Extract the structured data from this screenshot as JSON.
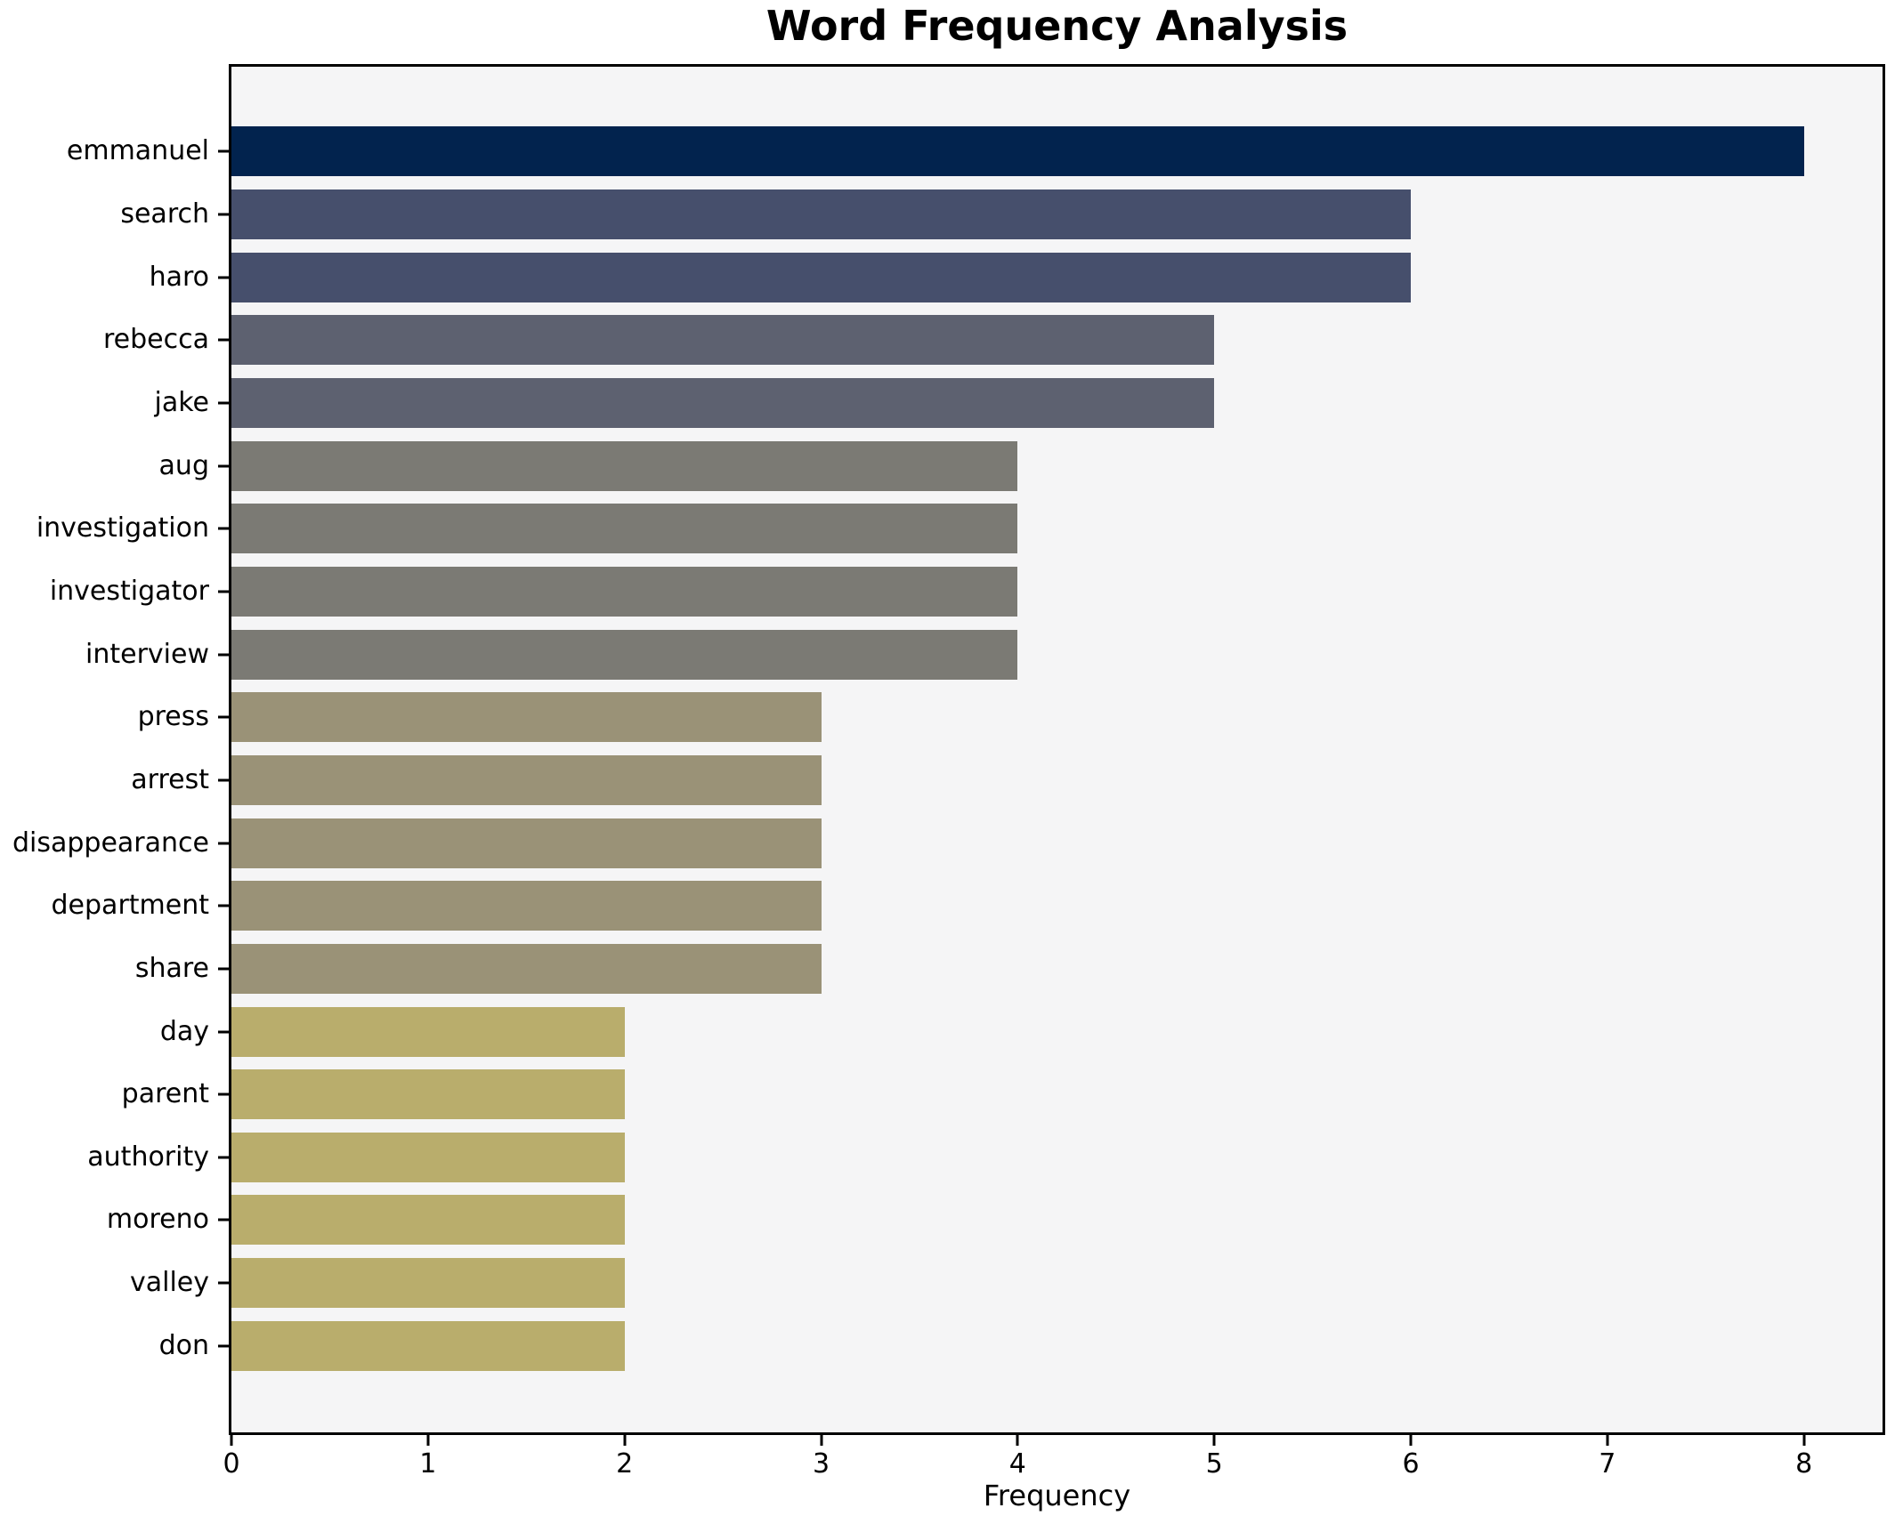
{
  "chart_data": {
    "type": "bar",
    "orientation": "horizontal",
    "title": "Word Frequency Analysis",
    "xlabel": "Frequency",
    "ylabel": "",
    "categories": [
      "emmanuel",
      "search",
      "haro",
      "rebecca",
      "jake",
      "aug",
      "investigation",
      "investigator",
      "interview",
      "press",
      "arrest",
      "disappearance",
      "department",
      "share",
      "day",
      "parent",
      "authority",
      "moreno",
      "valley",
      "don"
    ],
    "values": [
      8,
      6,
      6,
      5,
      5,
      4,
      4,
      4,
      4,
      3,
      3,
      3,
      3,
      3,
      2,
      2,
      2,
      2,
      2,
      2
    ],
    "bar_colors": [
      "#02234e",
      "#464f6c",
      "#464f6c",
      "#5d6170",
      "#5d6170",
      "#7b7a74",
      "#7b7a74",
      "#7b7a74",
      "#7b7a74",
      "#9a9277",
      "#9a9277",
      "#9a9277",
      "#9a9277",
      "#9a9277",
      "#b9ad6c",
      "#b9ad6c",
      "#b9ad6c",
      "#b9ad6c",
      "#b9ad6c",
      "#b9ad6c"
    ],
    "x_ticks": [
      0,
      1,
      2,
      3,
      4,
      5,
      6,
      7,
      8
    ],
    "xlim": [
      0,
      8.4
    ],
    "grid": false,
    "legend": null,
    "plot_background": "#f5f5f6",
    "figure_background": "#ffffff",
    "spine_color": "#000000",
    "bar_height_fraction": 0.8
  }
}
